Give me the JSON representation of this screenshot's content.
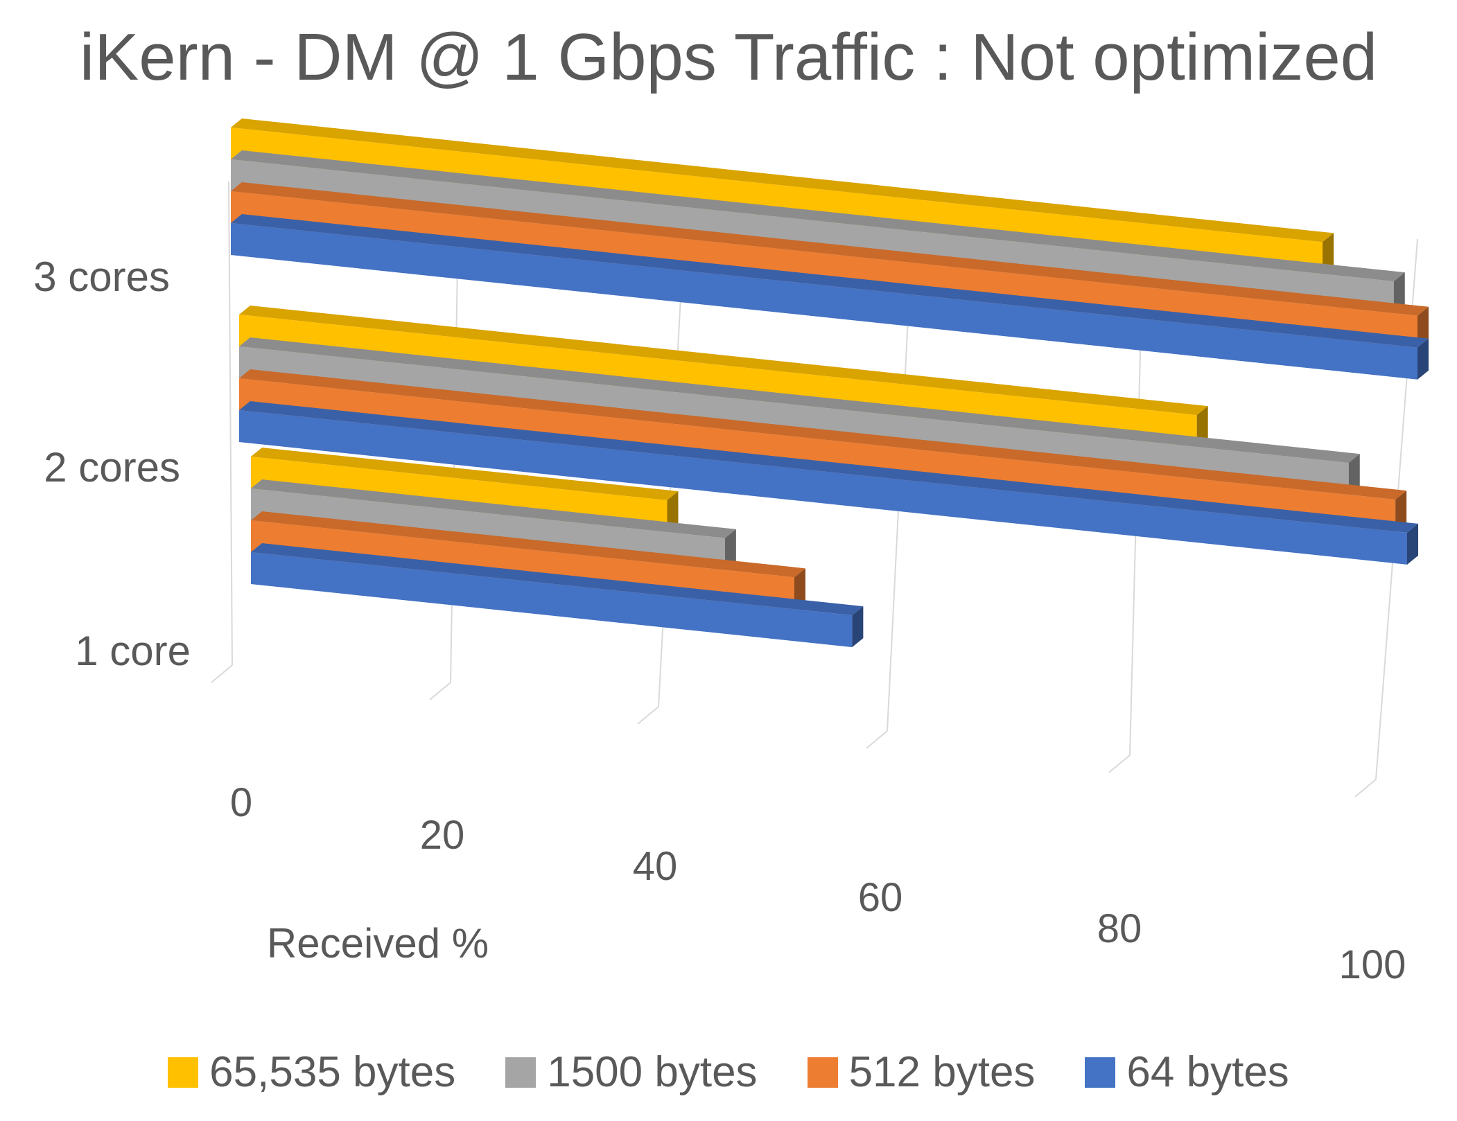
{
  "chart_data": {
    "type": "bar",
    "orientation": "horizontal",
    "title": "iKern - DM @ 1 Gbps Traffic : Not optimized",
    "xlabel": "Received %",
    "ylabel": "",
    "xlim": [
      0,
      100
    ],
    "x_ticks": [
      "0",
      "20",
      "40",
      "60",
      "80",
      "100"
    ],
    "categories": [
      "1 core",
      "2 cores",
      "3 cores"
    ],
    "series": [
      {
        "name": "65,535 bytes",
        "color": "#FFC000",
        "values": [
          36,
          82,
          92
        ]
      },
      {
        "name": "1500 bytes",
        "color": "#A5A5A5",
        "values": [
          41,
          95,
          98
        ]
      },
      {
        "name": "512 bytes",
        "color": "#ED7D31",
        "values": [
          47,
          99,
          100
        ]
      },
      {
        "name": "64 bytes",
        "color": "#4472C4",
        "values": [
          52,
          100,
          100
        ]
      }
    ],
    "grid": true,
    "legend": "bottom"
  }
}
